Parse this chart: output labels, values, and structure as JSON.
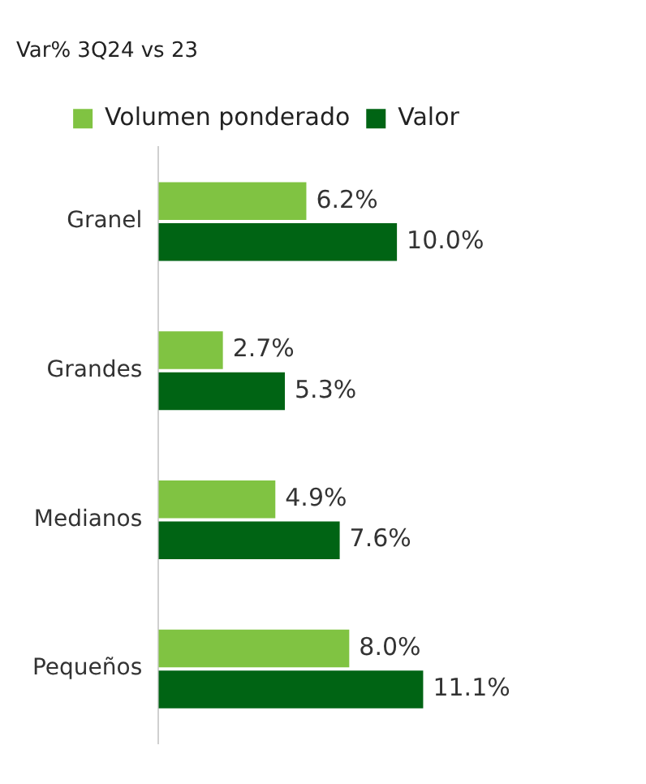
{
  "chart_data": {
    "type": "bar",
    "orientation": "horizontal",
    "title": "Var% 3Q24 vs 23",
    "categories": [
      "Granel",
      "Grandes",
      "Medianos",
      "Pequeños"
    ],
    "series": [
      {
        "name": "Volumen ponderado",
        "color": "#80c342",
        "values": [
          6.2,
          2.7,
          4.9,
          8.0
        ],
        "value_labels": [
          "6.2%",
          "2.7%",
          "4.9%",
          "8.0%"
        ]
      },
      {
        "name": "Valor",
        "color": "#006414",
        "values": [
          10.0,
          5.3,
          7.6,
          11.1
        ],
        "value_labels": [
          "10.0%",
          "5.3%",
          "7.6%",
          "11.1%"
        ]
      }
    ],
    "tick_labels": "y",
    "legend": "top"
  }
}
